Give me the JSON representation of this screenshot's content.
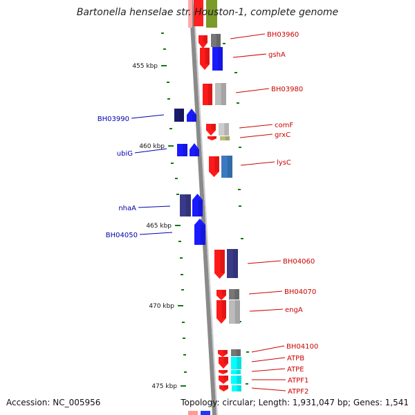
{
  "title": "Bartonella henselae str. Houston-1, complete genome",
  "footer": {
    "accession": "Accession: NC_005956",
    "topology": "Topology: circular; Length: 1,931,047 bp; Genes: 1,541"
  },
  "colors": {
    "forward_label": "#cc0000",
    "reverse_label": "#0000aa",
    "backbone": "#888888",
    "tick": "#117711"
  },
  "ticks": [
    {
      "label": "455 kbp"
    },
    {
      "label": "460 kbp"
    },
    {
      "label": "465 kbp"
    },
    {
      "label": "470 kbp"
    },
    {
      "label": "475 kbp"
    }
  ],
  "genes": [
    {
      "name": "BH03960",
      "color": "#ff0000",
      "strand": "+"
    },
    {
      "name": "gshA",
      "color": "#ff0000",
      "strand": "+"
    },
    {
      "name": "BH03980",
      "color": "#ff0000",
      "strand": "+"
    },
    {
      "name": "comF",
      "color": "#ff0000",
      "strand": "+"
    },
    {
      "name": "grxC",
      "color": "#ff0000",
      "strand": "+"
    },
    {
      "name": "lysC",
      "color": "#ff0000",
      "strand": "+"
    },
    {
      "name": "BH03990",
      "color": "#0000ff",
      "strand": "-"
    },
    {
      "name": "ubiG",
      "color": "#0000ff",
      "strand": "-"
    },
    {
      "name": "nhaA",
      "color": "#0000ff",
      "strand": "-"
    },
    {
      "name": "BH04050",
      "color": "#0000ff",
      "strand": "-"
    },
    {
      "name": "BH04060",
      "color": "#ff0000",
      "strand": "+"
    },
    {
      "name": "BH04070",
      "color": "#ff0000",
      "strand": "+"
    },
    {
      "name": "engA",
      "color": "#ff0000",
      "strand": "+"
    },
    {
      "name": "BH04100",
      "color": "#ff0000",
      "strand": "+"
    },
    {
      "name": "ATPB",
      "color": "#ff0000",
      "strand": "+"
    },
    {
      "name": "ATPE",
      "color": "#ff0000",
      "strand": "+"
    },
    {
      "name": "ATPF1",
      "color": "#ff0000",
      "strand": "+"
    },
    {
      "name": "ATPF2",
      "color": "#ff0000",
      "strand": "+"
    }
  ]
}
